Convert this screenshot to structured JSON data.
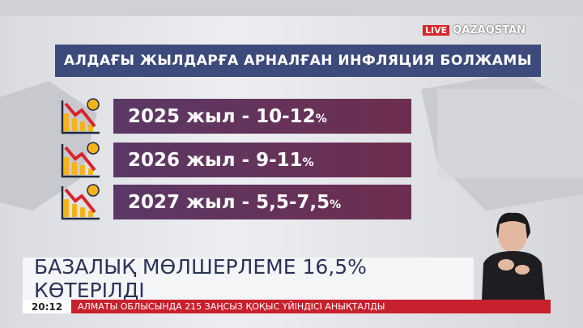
{
  "logo": {
    "live": "LIVE",
    "channel": "QAZAQSTAN"
  },
  "header": {
    "title": "АЛДАҒЫ ЖЫЛДАРҒА АРНАЛҒАН ИНФЛЯЦИЯ БОЛЖАМЫ"
  },
  "rows": [
    {
      "text": "2025 жыл - 10-12",
      "unit": "%"
    },
    {
      "text": "2026 жыл - 9-11",
      "unit": "%"
    },
    {
      "text": "2027 жыл - 5,5-7,5",
      "unit": "%"
    }
  ],
  "lower_third": {
    "headline": "БАЗАЛЫҚ МӨЛШЕРЛЕМЕ 16,5% КӨТЕРІЛДІ"
  },
  "ticker": {
    "time": "20:12",
    "text": "АЛМАТЫ ОБЛЫСЫНДА 215 ЗАҢСЫЗ ҚОҚЫС ҮЙІНДІСІ АНЫҚТАЛДЫ"
  }
}
